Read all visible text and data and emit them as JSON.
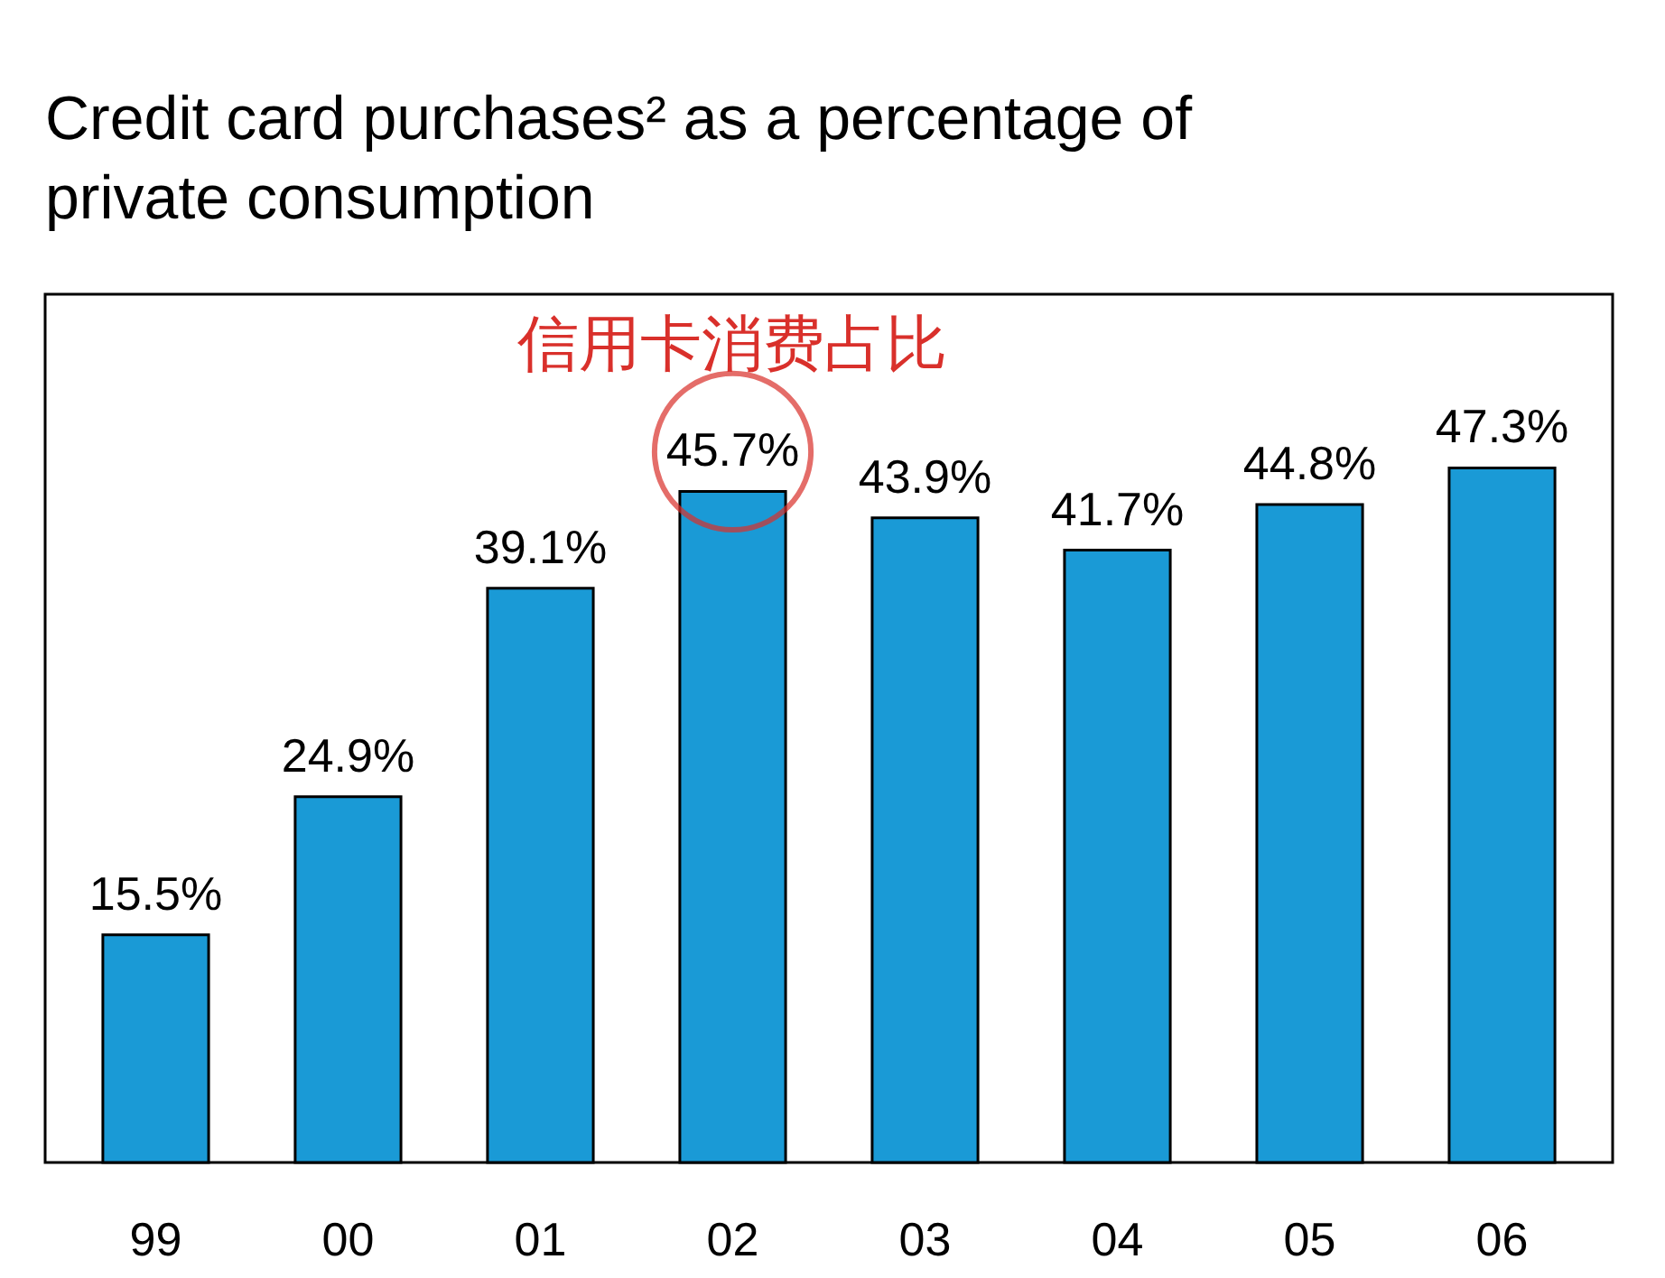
{
  "chart_data": {
    "type": "bar",
    "title": "Credit card purchases² as a percentage of private consumption",
    "categories": [
      "99",
      "00",
      "01",
      "02",
      "03",
      "04",
      "05",
      "06"
    ],
    "values": [
      15.5,
      24.9,
      39.1,
      45.7,
      43.9,
      41.7,
      44.8,
      47.3
    ],
    "value_labels": [
      "15.5%",
      "24.9%",
      "39.1%",
      "45.7%",
      "43.9%",
      "41.7%",
      "44.8%",
      "47.3%"
    ],
    "color": "#1a9ad6",
    "annotations": [
      {
        "text": "信用卡消费占比",
        "x": "02",
        "y": 45.7
      }
    ],
    "grid": false,
    "tick_labels": "x"
  }
}
